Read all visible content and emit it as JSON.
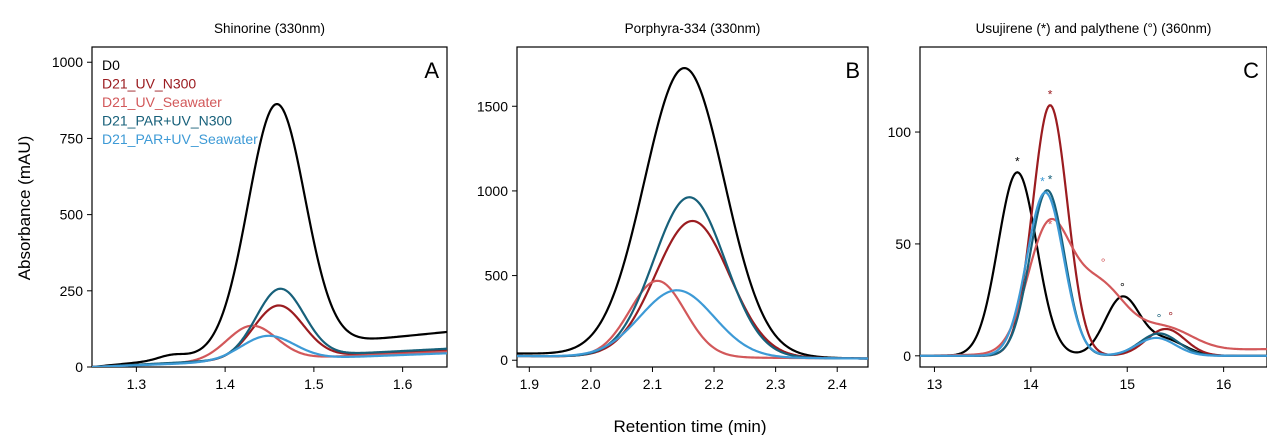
{
  "figure": {
    "xlabel": "Retention time (min)",
    "ylabel": "Absorbance (mAU)"
  },
  "legend": [
    {
      "name": "D0",
      "color": "#000000"
    },
    {
      "name": "D21_UV_N300",
      "color": "#9b1c20"
    },
    {
      "name": "D21_UV_Seawater",
      "color": "#d2585a"
    },
    {
      "name": "D21_PAR+UV_N300",
      "color": "#17607a"
    },
    {
      "name": "D21_PAR+UV_Seawater",
      "color": "#3d9ad6"
    }
  ],
  "chart_data": [
    {
      "type": "line",
      "title": "Shinorine (330nm)",
      "panel_label": "A",
      "xlim": [
        1.25,
        1.65
      ],
      "ylim": [
        0,
        1050
      ],
      "xticks": [
        1.3,
        1.4,
        1.5,
        1.6
      ],
      "xtick_labels": [
        "1.3",
        "1.4",
        "1.5",
        "1.6"
      ],
      "yticks": [
        0,
        250,
        500,
        750,
        1000
      ],
      "ytick_labels": [
        "0",
        "250",
        "500",
        "750",
        "1000"
      ],
      "series": [
        {
          "name": "D0",
          "color": "#000000",
          "baseline_start": 0,
          "baseline_end": 115,
          "peaks": [
            [
              14,
              1.34,
              0.015
            ],
            [
              803,
              1.458,
              0.032
            ]
          ]
        },
        {
          "name": "D21_UV_N300",
          "color": "#9b1c20",
          "baseline_start": 0,
          "baseline_end": 55,
          "peaks": [
            [
              173,
              1.46,
              0.028
            ]
          ]
        },
        {
          "name": "D21_UV_Seawater",
          "color": "#d2585a",
          "baseline_start": 0,
          "baseline_end": 50,
          "peaks": [
            [
              113,
              1.43,
              0.028
            ]
          ]
        },
        {
          "name": "D21_PAR+UV_N300",
          "color": "#17607a",
          "baseline_start": 0,
          "baseline_end": 60,
          "peaks": [
            [
              225,
              1.462,
              0.027
            ]
          ]
        },
        {
          "name": "D21_PAR+UV_Seawater",
          "color": "#3d9ad6",
          "baseline_start": 0,
          "baseline_end": 45,
          "peaks": [
            [
              80,
              1.448,
              0.03
            ]
          ]
        }
      ]
    },
    {
      "type": "line",
      "title": "Porphyra-334 (330nm)",
      "panel_label": "B",
      "xlim": [
        1.88,
        2.45
      ],
      "ylim": [
        -40,
        1850
      ],
      "xticks": [
        1.9,
        2.0,
        2.1,
        2.2,
        2.3,
        2.4
      ],
      "xtick_labels": [
        "1.9",
        "2.0",
        "2.1",
        "2.2",
        "2.3",
        "2.4"
      ],
      "yticks": [
        0,
        500,
        1000,
        1500
      ],
      "ytick_labels": [
        "0",
        "500",
        "1000",
        "1500"
      ],
      "series": [
        {
          "name": "D0",
          "color": "#000000",
          "baseline_start": 40,
          "baseline_end": 10,
          "peaks": [
            [
              1700,
              2.152,
              0.065
            ]
          ]
        },
        {
          "name": "D21_UV_N300",
          "color": "#9b1c20",
          "baseline_start": 25,
          "baseline_end": 10,
          "peaks": [
            [
              805,
              2.165,
              0.06
            ]
          ]
        },
        {
          "name": "D21_UV_Seawater",
          "color": "#d2585a",
          "baseline_start": 25,
          "baseline_end": 10,
          "peaks": [
            [
              450,
              2.108,
              0.045
            ]
          ]
        },
        {
          "name": "D21_PAR+UV_N300",
          "color": "#17607a",
          "baseline_start": 25,
          "baseline_end": 10,
          "peaks": [
            [
              945,
              2.16,
              0.058
            ]
          ]
        },
        {
          "name": "D21_PAR+UV_Seawater",
          "color": "#3d9ad6",
          "baseline_start": 25,
          "baseline_end": 10,
          "peaks": [
            [
              395,
              2.14,
              0.06
            ]
          ]
        }
      ]
    },
    {
      "type": "line",
      "title": "Usujirene (*) and palythene (°) (360nm)",
      "panel_label": "C",
      "xlim": [
        12.85,
        16.45
      ],
      "ylim": [
        -5,
        138
      ],
      "xticks": [
        13,
        14,
        15,
        16
      ],
      "xtick_labels": [
        "13",
        "14",
        "15",
        "16"
      ],
      "yticks": [
        0,
        50,
        100
      ],
      "ytick_labels": [
        "0",
        "50",
        "100"
      ],
      "series": [
        {
          "name": "D0",
          "color": "#000000",
          "baseline_start": 0,
          "baseline_end": 0,
          "peaks": [
            [
              82,
              13.86,
              0.2
            ],
            [
              26,
              14.95,
              0.18
            ],
            [
              7,
              15.4,
              0.2
            ]
          ]
        },
        {
          "name": "D21_UV_N300",
          "color": "#9b1c20",
          "baseline_start": 0,
          "baseline_end": 0,
          "peaks": [
            [
              112,
              14.2,
              0.18
            ],
            [
              12,
              15.4,
              0.2
            ]
          ]
        },
        {
          "name": "D21_UV_Seawater",
          "color": "#d2585a",
          "baseline_start": 0,
          "baseline_end": 3,
          "peaks": [
            [
              54,
              14.18,
              0.22
            ],
            [
              30,
              14.7,
              0.28
            ],
            [
              10,
              15.4,
              0.28
            ]
          ]
        },
        {
          "name": "D21_PAR+UV_N300",
          "color": "#17607a",
          "baseline_start": 0,
          "baseline_end": 0,
          "peaks": [
            [
              74,
              14.17,
              0.18
            ],
            [
              10,
              15.33,
              0.2
            ]
          ]
        },
        {
          "name": "D21_PAR+UV_Seawater",
          "color": "#3d9ad6",
          "baseline_start": 0,
          "baseline_end": 0,
          "peaks": [
            [
              73,
              14.15,
              0.19
            ],
            [
              8,
              15.3,
              0.2
            ]
          ]
        }
      ],
      "annotations": [
        {
          "text": "*",
          "x": 13.86,
          "y": 85,
          "color": "#000000"
        },
        {
          "text": "*",
          "x": 14.2,
          "y": 115,
          "color": "#9b1c20"
        },
        {
          "text": "*",
          "x": 14.2,
          "y": 57,
          "color": "#d2585a"
        },
        {
          "text": "*",
          "x": 14.2,
          "y": 77,
          "color": "#17607a"
        },
        {
          "text": "*",
          "x": 14.12,
          "y": 76,
          "color": "#3d9ad6"
        },
        {
          "text": "°",
          "x": 14.95,
          "y": 29,
          "color": "#000000"
        },
        {
          "text": "°",
          "x": 14.75,
          "y": 40,
          "color": "#d2585a"
        },
        {
          "text": "°",
          "x": 15.33,
          "y": 15,
          "color": "#17607a"
        },
        {
          "text": "°",
          "x": 15.45,
          "y": 16,
          "color": "#9b1c20"
        }
      ]
    }
  ]
}
